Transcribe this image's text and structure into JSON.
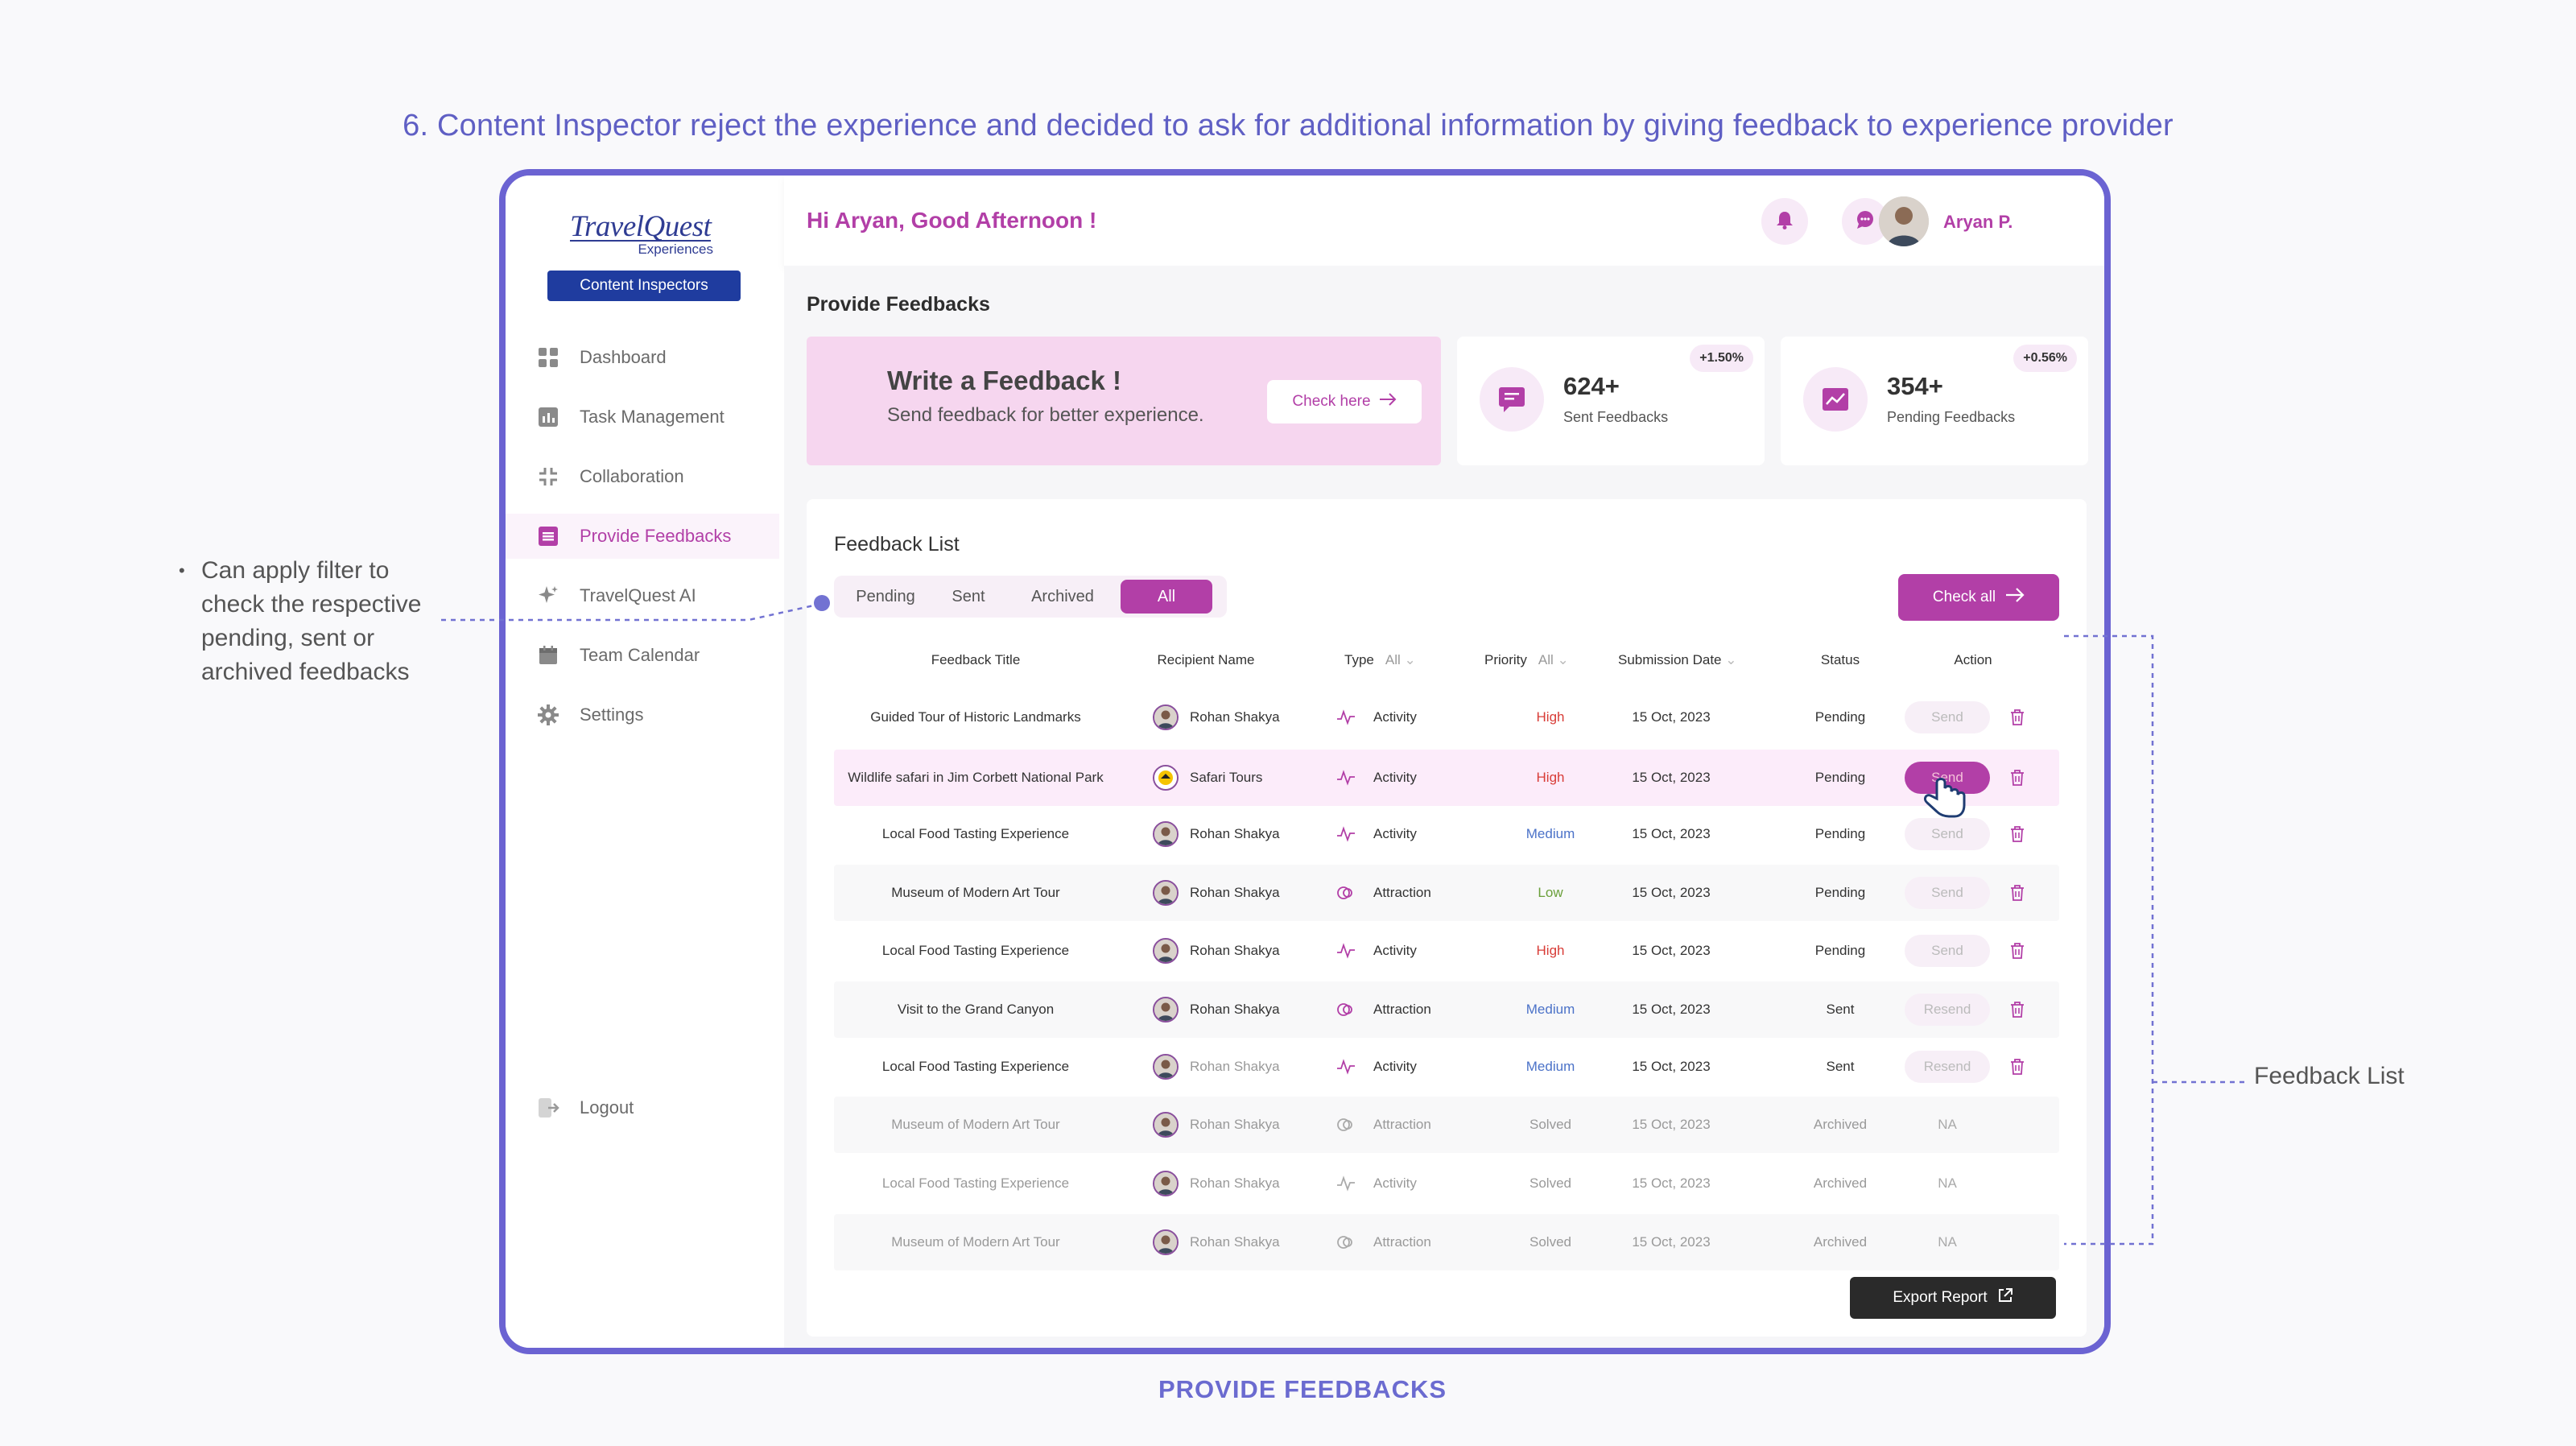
{
  "page": {
    "heading": "6. Content Inspector reject the experience and decided to ask for additional information by giving feedback to experience provider",
    "caption": "PROVIDE FEEDBACKS"
  },
  "annotations": {
    "filter_note": "Can apply filter to check the respective pending, sent or archived feedbacks",
    "list_note": "Feedback List"
  },
  "brand": {
    "logo_main": "TravelQuest",
    "logo_sub": "Experiences",
    "role_badge": "Content Inspectors",
    "accent_color": "#b23fa7",
    "frame_color": "#6b63d2"
  },
  "sidebar": {
    "items": [
      {
        "label": "Dashboard",
        "icon": "dashboard-icon"
      },
      {
        "label": "Task Management",
        "icon": "task-icon"
      },
      {
        "label": "Collaboration",
        "icon": "collaboration-icon"
      },
      {
        "label": "Provide Feedbacks",
        "icon": "feedback-icon",
        "active": true
      },
      {
        "label": "TravelQuest AI",
        "icon": "sparkle-icon"
      },
      {
        "label": "Team Calendar",
        "icon": "calendar-icon"
      },
      {
        "label": "Settings",
        "icon": "gear-icon"
      }
    ],
    "logout": "Logout"
  },
  "header": {
    "greeting": "Hi Aryan, Good Afternoon !",
    "user_name": "Aryan P."
  },
  "main": {
    "title": "Provide Feedbacks",
    "write_card": {
      "title": "Write a Feedback !",
      "subtitle": "Send feedback for better experience.",
      "button": "Check here"
    },
    "stats": [
      {
        "value": "624+",
        "label": "Sent Feedbacks",
        "badge": "+1.50%"
      },
      {
        "value": "354+",
        "label": "Pending Feedbacks",
        "badge": "+0.56%"
      }
    ],
    "list": {
      "title": "Feedback List",
      "tabs": [
        "Pending",
        "Sent",
        "Archived",
        "All"
      ],
      "active_tab": "All",
      "check_all": "Check all",
      "export": "Export Report",
      "columns": {
        "title": "Feedback Title",
        "recipient": "Recipient Name",
        "type": "Type",
        "type_filter": "All",
        "priority": "Priority",
        "priority_filter": "All",
        "date": "Submission Date",
        "status": "Status",
        "action": "Action"
      },
      "rows": [
        {
          "title": "Guided Tour of Historic Landmarks",
          "recipient": "Rohan Shakya",
          "type": "Activity",
          "priority": "High",
          "date": "15 Oct, 2023",
          "status": "Pending",
          "action": "Send"
        },
        {
          "title": "Wildlife safari in Jim Corbett National Park",
          "recipient": "Safari Tours",
          "type": "Activity",
          "priority": "High",
          "date": "15 Oct, 2023",
          "status": "Pending",
          "action": "Send"
        },
        {
          "title": "Local Food Tasting Experience",
          "recipient": "Rohan Shakya",
          "type": "Activity",
          "priority": "Medium",
          "date": "15 Oct, 2023",
          "status": "Pending",
          "action": "Send"
        },
        {
          "title": "Museum of Modern Art Tour",
          "recipient": "Rohan Shakya",
          "type": "Attraction",
          "priority": "Low",
          "date": "15 Oct, 2023",
          "status": "Pending",
          "action": "Send"
        },
        {
          "title": "Local Food Tasting Experience",
          "recipient": "Rohan Shakya",
          "type": "Activity",
          "priority": "High",
          "date": "15 Oct, 2023",
          "status": "Pending",
          "action": "Send"
        },
        {
          "title": "Visit to the Grand Canyon",
          "recipient": "Rohan Shakya",
          "type": "Attraction",
          "priority": "Medium",
          "date": "15 Oct, 2023",
          "status": "Sent",
          "action": "Resend"
        },
        {
          "title": "Local Food Tasting Experience",
          "recipient": "Rohan Shakya",
          "type": "Activity",
          "priority": "Medium",
          "date": "15 Oct, 2023",
          "status": "Sent",
          "action": "Resend"
        },
        {
          "title": "Museum of Modern Art Tour",
          "recipient": "Rohan Shakya",
          "type": "Attraction",
          "priority": "Solved",
          "date": "15 Oct, 2023",
          "status": "Archived",
          "action": "NA"
        },
        {
          "title": "Local Food Tasting Experience",
          "recipient": "Rohan Shakya",
          "type": "Activity",
          "priority": "Solved",
          "date": "15 Oct, 2023",
          "status": "Archived",
          "action": "NA"
        },
        {
          "title": "Museum of Modern Art Tour",
          "recipient": "Rohan Shakya",
          "type": "Attraction",
          "priority": "Solved",
          "date": "15 Oct, 2023",
          "status": "Archived",
          "action": "NA"
        }
      ]
    }
  }
}
